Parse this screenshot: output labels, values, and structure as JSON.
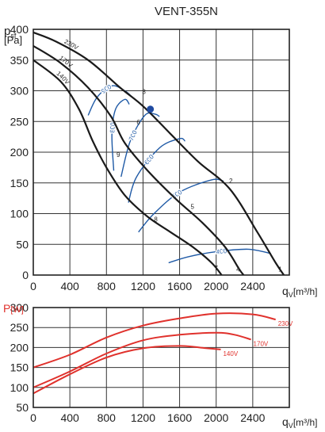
{
  "title": "VENT-355N",
  "colors": {
    "fan_curve": "#1a1a1a",
    "rpm_curve": "#1f5aa6",
    "power_curve": "#e0312c",
    "operating_point": "#1f4aa0"
  },
  "chart_data": [
    {
      "type": "line",
      "name": "pressure",
      "ylabel_main": "p",
      "ylabel_sub": "sf",
      "yunit": "[Pa]",
      "xlabel_main": "q",
      "xlabel_sub": "V",
      "xunit": "[m³/h]",
      "xlim": [
        0,
        2800
      ],
      "ylim": [
        0,
        400
      ],
      "xticks": [
        "0",
        "400",
        "800",
        "1200",
        "1600",
        "2000",
        "2400"
      ],
      "yticks": [
        "0",
        "50",
        "100",
        "150",
        "200",
        "250",
        "300",
        "350",
        "400"
      ],
      "grid": true,
      "series": [
        {
          "name": "230V",
          "points": [
            [
              0,
              395
            ],
            [
              250,
              380
            ],
            [
              600,
              350
            ],
            [
              950,
              305
            ],
            [
              1200,
              275
            ],
            [
              1500,
              230
            ],
            [
              1800,
              185
            ],
            [
              2150,
              140
            ],
            [
              2450,
              70
            ],
            [
              2650,
              20
            ],
            [
              2740,
              0
            ]
          ]
        },
        {
          "name": "170V",
          "points": [
            [
              0,
              373
            ],
            [
              300,
              345
            ],
            [
              600,
              305
            ],
            [
              850,
              258
            ],
            [
              1000,
              215
            ],
            [
              1250,
              170
            ],
            [
              1550,
              125
            ],
            [
              1850,
              85
            ],
            [
              2100,
              45
            ],
            [
              2250,
              10
            ],
            [
              2300,
              0
            ]
          ]
        },
        {
          "name": "140V",
          "points": [
            [
              0,
              350
            ],
            [
              300,
              315
            ],
            [
              500,
              270
            ],
            [
              650,
              218
            ],
            [
              800,
              175
            ],
            [
              1000,
              130
            ],
            [
              1250,
              95
            ],
            [
              1500,
              70
            ],
            [
              1750,
              45
            ],
            [
              1950,
              20
            ],
            [
              2060,
              0
            ]
          ]
        }
      ],
      "rpm_lines": [
        {
          "label": "900",
          "points": [
            [
              600,
              260
            ],
            [
              700,
              290
            ],
            [
              860,
              308
            ],
            [
              1000,
              300
            ],
            [
              1080,
              290
            ]
          ]
        },
        {
          "label": "800",
          "points": [
            [
              880,
              170
            ],
            [
              860,
              230
            ],
            [
              900,
              270
            ],
            [
              1000,
              286
            ],
            [
              1050,
              278
            ]
          ]
        },
        {
          "label": "700",
          "points": [
            [
              960,
              160
            ],
            [
              1060,
              218
            ],
            [
              1220,
              260
            ],
            [
              1330,
              262
            ],
            [
              1380,
              258
            ]
          ]
        },
        {
          "label": "600",
          "points": [
            [
              1040,
              118
            ],
            [
              1130,
              160
            ],
            [
              1380,
              207
            ],
            [
              1600,
              222
            ],
            [
              1660,
              218
            ]
          ]
        },
        {
          "label": "500",
          "points": [
            [
              1150,
              70
            ],
            [
              1320,
              100
            ],
            [
              1600,
              135
            ],
            [
              1950,
              155
            ],
            [
              2080,
              153
            ]
          ]
        },
        {
          "label": "400",
          "points": [
            [
              1480,
              20
            ],
            [
              1700,
              30
            ],
            [
              2000,
              38
            ],
            [
              2350,
              42
            ],
            [
              2600,
              35
            ]
          ]
        }
      ],
      "point_tags": [
        {
          "label": "1",
          "x": 2700,
          "y": 6
        },
        {
          "label": "2",
          "x": 2160,
          "y": 150
        },
        {
          "label": "3",
          "x": 1210,
          "y": 295
        },
        {
          "label": "4",
          "x": 2240,
          "y": 6
        },
        {
          "label": "5",
          "x": 1740,
          "y": 108
        },
        {
          "label": "6",
          "x": 1150,
          "y": 245
        },
        {
          "label": "7",
          "x": 2000,
          "y": 8
        },
        {
          "label": "8",
          "x": 1340,
          "y": 87
        },
        {
          "label": "9",
          "x": 930,
          "y": 192
        }
      ],
      "operating_point": {
        "x": 1280,
        "y": 270
      }
    },
    {
      "type": "line",
      "name": "power",
      "ylabel": "P",
      "yunit": "[W]",
      "xlabel_main": "q",
      "xlabel_sub": "V",
      "xunit": "[m³/h]",
      "xlim": [
        0,
        2800
      ],
      "ylim": [
        50,
        300
      ],
      "xticks": [
        "0",
        "400",
        "800",
        "1200",
        "1600",
        "2000",
        "2400"
      ],
      "yticks": [
        "50",
        "100",
        "150",
        "200",
        "250",
        "300"
      ],
      "grid": true,
      "series": [
        {
          "name": "230V",
          "points": [
            [
              0,
              150
            ],
            [
              400,
              182
            ],
            [
              800,
              225
            ],
            [
              1200,
              255
            ],
            [
              1600,
              273
            ],
            [
              2000,
              285
            ],
            [
              2400,
              283
            ],
            [
              2650,
              270
            ]
          ]
        },
        {
          "name": "170V",
          "points": [
            [
              0,
              100
            ],
            [
              400,
              140
            ],
            [
              800,
              185
            ],
            [
              1200,
              218
            ],
            [
              1600,
              232
            ],
            [
              2000,
              237
            ],
            [
              2200,
              232
            ],
            [
              2380,
              220
            ]
          ]
        },
        {
          "name": "140V",
          "points": [
            [
              0,
              85
            ],
            [
              400,
              133
            ],
            [
              800,
              175
            ],
            [
              1200,
              198
            ],
            [
              1600,
              204
            ],
            [
              1900,
              198
            ],
            [
              2050,
              195
            ]
          ]
        }
      ]
    }
  ]
}
